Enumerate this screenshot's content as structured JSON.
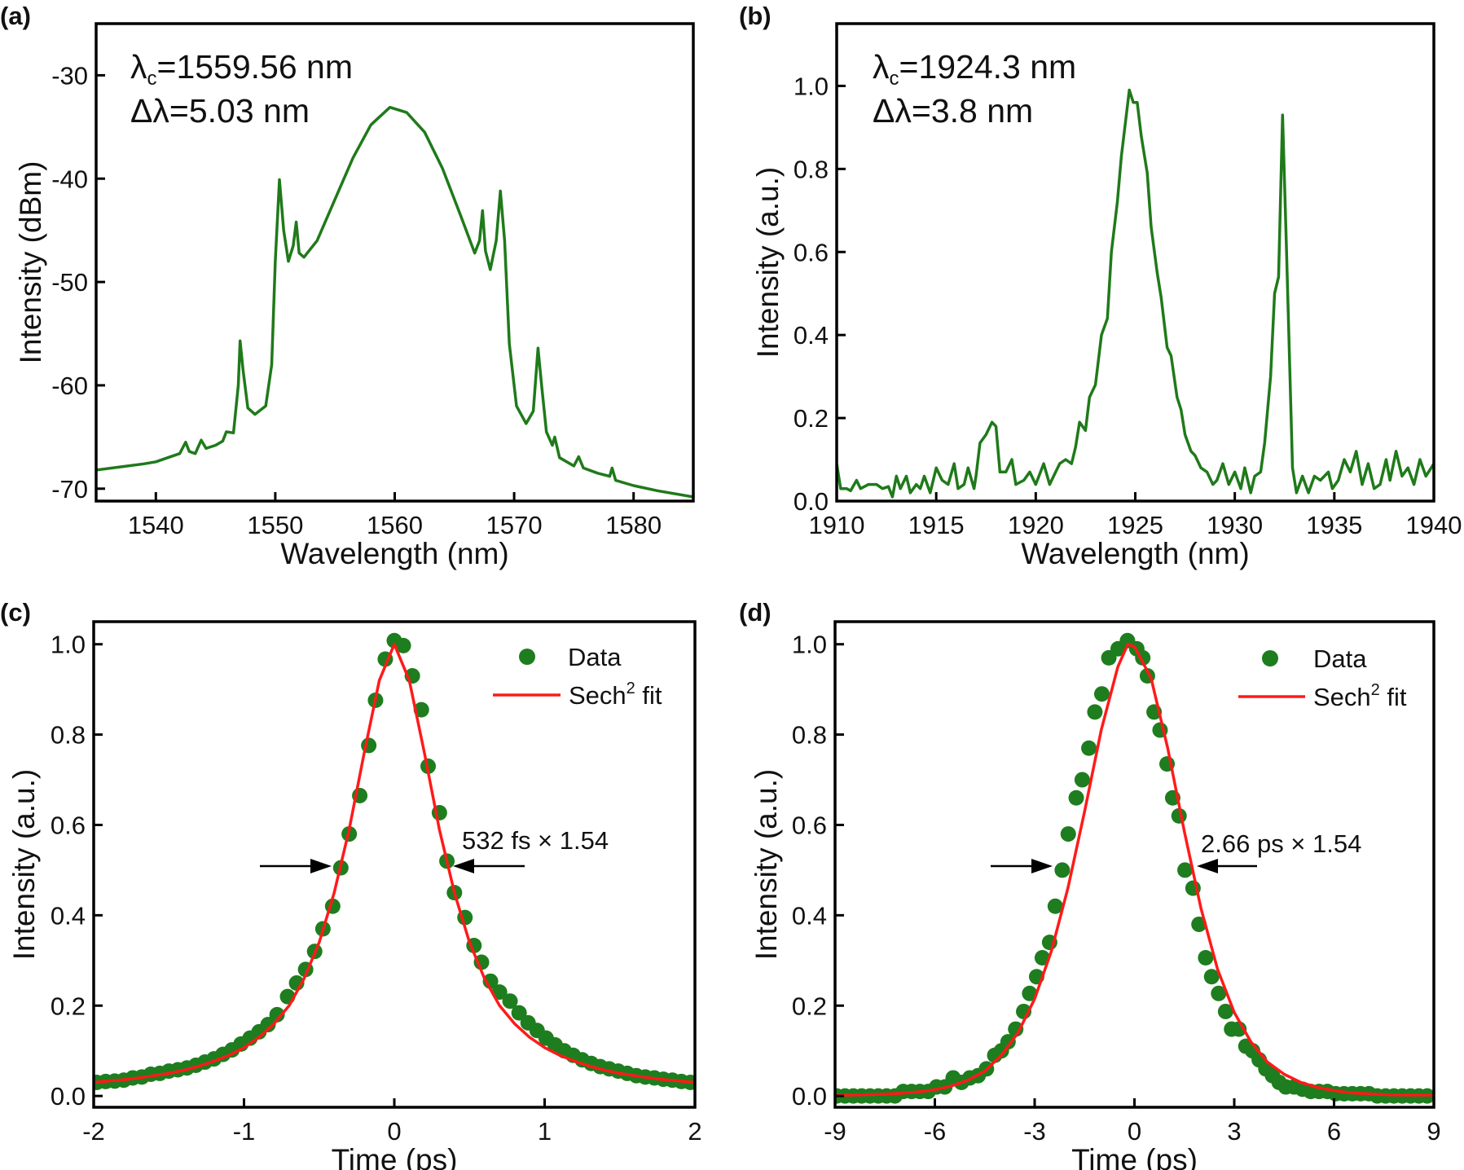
{
  "chart_data": [
    {
      "panel_label": "(a)",
      "type": "line",
      "xlabel": "Wavelength (nm)",
      "ylabel": "Intensity (dBm)",
      "xlim": [
        1535,
        1585
      ],
      "ylim": [
        -71.2,
        -25
      ],
      "xticks": [
        1540,
        1550,
        1560,
        1570,
        1580
      ],
      "xtick_labels": [
        "1540",
        "1550",
        "1560",
        "1570",
        "1580"
      ],
      "yticks": [
        -70,
        -60,
        -50,
        -40,
        -30
      ],
      "ytick_labels": [
        "-70",
        "-60",
        "-50",
        "-40",
        "-30"
      ],
      "annotation": {
        "lambda_symbol": "λ",
        "lambda_sub": "c",
        "lambda_value": "=1559.56 nm",
        "delta_label": "Δλ=5.03 nm"
      },
      "line_color": "#1f7a1a",
      "grid": false,
      "series": [
        {
          "x": [
            1535,
            1537,
            1539,
            1540,
            1541,
            1542,
            1542.5,
            1542.8,
            1543.3,
            1543.8,
            1544.2,
            1545,
            1545.6,
            1545.9,
            1546.5,
            1546.9,
            1547.05,
            1547.3,
            1547.7,
            1548.3,
            1549.2,
            1549.7,
            1550.0,
            1550.35,
            1550.7,
            1551.1,
            1551.5,
            1551.75,
            1552.0,
            1552.4,
            1553.5,
            1555,
            1556.5,
            1558,
            1559.6,
            1561,
            1562.5,
            1564,
            1565.5,
            1566.7,
            1567.1,
            1567.35,
            1567.6,
            1568.0,
            1568.5,
            1568.85,
            1569.2,
            1569.6,
            1570.2,
            1571,
            1571.6,
            1572.0,
            1572.3,
            1572.7,
            1573.2,
            1573.4,
            1573.8,
            1575,
            1575.4,
            1575.8,
            1577,
            1578,
            1578.2,
            1578.5,
            1580,
            1582,
            1585
          ],
          "y": [
            -68.2,
            -67.9,
            -67.6,
            -67.4,
            -67,
            -66.6,
            -65.5,
            -66.4,
            -66.6,
            -65.3,
            -66.1,
            -65.8,
            -65.4,
            -64.5,
            -64.6,
            -60,
            -55.7,
            -58.5,
            -62.2,
            -62.8,
            -62,
            -58,
            -48,
            -40.1,
            -45,
            -48,
            -46.5,
            -44.2,
            -47.2,
            -47.6,
            -46,
            -42,
            -38,
            -34.8,
            -33.1,
            -33.6,
            -35.5,
            -39,
            -43.5,
            -47.2,
            -46,
            -43.1,
            -47,
            -48.8,
            -46,
            -41.2,
            -46,
            -56,
            -62,
            -63.7,
            -62.5,
            -56.4,
            -60,
            -64.5,
            -65.8,
            -65,
            -67,
            -67.8,
            -66.9,
            -68,
            -68.5,
            -68.8,
            -68,
            -69.2,
            -69.7,
            -70.2,
            -70.8
          ]
        }
      ]
    },
    {
      "panel_label": "(b)",
      "type": "line",
      "xlabel": "Wavelength (nm)",
      "ylabel": "Intensity (a.u.)",
      "xlim": [
        1910,
        1940
      ],
      "ylim": [
        0,
        1.15
      ],
      "xticks": [
        1910,
        1915,
        1920,
        1925,
        1930,
        1935,
        1940
      ],
      "xtick_labels": [
        "1910",
        "1915",
        "1920",
        "1925",
        "1930",
        "1935",
        "1940"
      ],
      "yticks": [
        0,
        0.2,
        0.4,
        0.6,
        0.8,
        1.0
      ],
      "ytick_labels": [
        "0.0",
        "0.2",
        "0.4",
        "0.6",
        "0.8",
        "1.0"
      ],
      "annotation": {
        "lambda_symbol": "λ",
        "lambda_sub": "c",
        "lambda_value": "=1924.3 nm",
        "delta_label": "Δλ=3.8 nm"
      },
      "line_color": "#1f7a1a",
      "grid": false,
      "series": [
        {
          "x": [
            1910,
            1910.2,
            1910.5,
            1910.7,
            1911,
            1911.2,
            1911.6,
            1912,
            1912.3,
            1912.6,
            1912.8,
            1913,
            1913.2,
            1913.5,
            1913.7,
            1914,
            1914.2,
            1914.4,
            1914.7,
            1915,
            1915.3,
            1915.6,
            1915.9,
            1916.1,
            1916.4,
            1916.6,
            1916.9,
            1917.0,
            1917.2,
            1917.5,
            1917.8,
            1918.0,
            1918.2,
            1918.5,
            1918.8,
            1919.0,
            1919.4,
            1919.7,
            1920.0,
            1920.4,
            1920.7,
            1920.9,
            1921.2,
            1921.5,
            1921.8,
            1922.0,
            1922.2,
            1922.5,
            1922.7,
            1923.0,
            1923.3,
            1923.6,
            1923.8,
            1924.1,
            1924.3,
            1924.5,
            1924.7,
            1924.9,
            1925.1,
            1925.3,
            1925.6,
            1925.8,
            1926.1,
            1926.3,
            1926.6,
            1926.8,
            1927.1,
            1927.3,
            1927.5,
            1927.8,
            1928.0,
            1928.3,
            1928.6,
            1928.9,
            1929.1,
            1929.4,
            1929.7,
            1930.0,
            1930.3,
            1930.5,
            1930.8,
            1931.0,
            1931.3,
            1931.5,
            1931.8,
            1932.0,
            1932.2,
            1932.4,
            1932.6,
            1932.9,
            1933.1,
            1933.4,
            1933.7,
            1934.0,
            1934.3,
            1934.7,
            1934.9,
            1935.2,
            1935.5,
            1935.8,
            1936.1,
            1936.4,
            1936.7,
            1937.0,
            1937.3,
            1937.6,
            1937.8,
            1938.1,
            1938.4,
            1938.7,
            1939.0,
            1939.3,
            1939.6,
            1940
          ],
          "y": [
            0.09,
            0.03,
            0.03,
            0.025,
            0.05,
            0.03,
            0.04,
            0.04,
            0.03,
            0.035,
            0.01,
            0.06,
            0.03,
            0.06,
            0.02,
            0.04,
            0.03,
            0.06,
            0.02,
            0.08,
            0.05,
            0.04,
            0.09,
            0.03,
            0.04,
            0.08,
            0.03,
            0.06,
            0.14,
            0.16,
            0.19,
            0.18,
            0.07,
            0.07,
            0.1,
            0.04,
            0.05,
            0.07,
            0.04,
            0.09,
            0.04,
            0.06,
            0.09,
            0.1,
            0.09,
            0.13,
            0.19,
            0.17,
            0.25,
            0.28,
            0.4,
            0.44,
            0.6,
            0.72,
            0.83,
            0.91,
            0.99,
            0.96,
            0.96,
            0.88,
            0.79,
            0.66,
            0.55,
            0.49,
            0.37,
            0.35,
            0.25,
            0.22,
            0.16,
            0.12,
            0.11,
            0.08,
            0.07,
            0.04,
            0.05,
            0.09,
            0.04,
            0.07,
            0.03,
            0.08,
            0.02,
            0.06,
            0.07,
            0.14,
            0.3,
            0.5,
            0.54,
            0.93,
            0.6,
            0.08,
            0.02,
            0.06,
            0.02,
            0.06,
            0.05,
            0.07,
            0.03,
            0.05,
            0.1,
            0.07,
            0.12,
            0.04,
            0.09,
            0.03,
            0.04,
            0.1,
            0.05,
            0.12,
            0.06,
            0.08,
            0.04,
            0.1,
            0.06,
            0.09
          ]
        }
      ]
    },
    {
      "panel_label": "(c)",
      "type": "scatter",
      "xlabel": "Time (ps)",
      "ylabel": "Intensity (a.u.)",
      "xlim": [
        -2,
        2
      ],
      "ylim": [
        -0.025,
        1.05
      ],
      "xticks": [
        -2,
        -1,
        0,
        1,
        2
      ],
      "xtick_labels": [
        "-2",
        "-1",
        "0",
        "1",
        "2"
      ],
      "yticks": [
        0,
        0.2,
        0.4,
        0.6,
        0.8,
        1.0
      ],
      "ytick_labels": [
        "0.0",
        "0.2",
        "0.4",
        "0.6",
        "0.8",
        "1.0"
      ],
      "legend": {
        "data_label": "Data",
        "fit_prefix": "Sech",
        "fit_sup": "2",
        "fit_suffix": " fit",
        "placement": "top-right"
      },
      "fwhm_label": "532 fs × 1.54",
      "grid": false,
      "series": [
        {
          "name": "Data",
          "kind": "scatter",
          "color": "#1e7d1e",
          "x": [
            -1.98,
            -1.92,
            -1.86,
            -1.8,
            -1.74,
            -1.68,
            -1.62,
            -1.56,
            -1.5,
            -1.44,
            -1.38,
            -1.32,
            -1.26,
            -1.2,
            -1.14,
            -1.08,
            -1.02,
            -0.96,
            -0.9,
            -0.84,
            -0.78,
            -0.71,
            -0.65,
            -0.59,
            -0.53,
            -0.475,
            -0.41,
            -0.356,
            -0.3,
            -0.23,
            -0.17,
            -0.125,
            -0.06,
            0,
            0.06,
            0.12,
            0.18,
            0.225,
            0.3,
            0.35,
            0.4,
            0.47,
            0.53,
            0.58,
            0.64,
            0.7,
            0.77,
            0.83,
            0.89,
            0.95,
            1.01,
            1.07,
            1.13,
            1.19,
            1.25,
            1.31,
            1.37,
            1.43,
            1.49,
            1.55,
            1.61,
            1.67,
            1.73,
            1.79,
            1.85,
            1.91,
            1.97
          ],
          "y": [
            0.03,
            0.032,
            0.033,
            0.035,
            0.04,
            0.042,
            0.048,
            0.05,
            0.055,
            0.058,
            0.062,
            0.068,
            0.075,
            0.082,
            0.092,
            0.102,
            0.115,
            0.128,
            0.142,
            0.158,
            0.18,
            0.22,
            0.25,
            0.28,
            0.32,
            0.37,
            0.42,
            0.505,
            0.58,
            0.665,
            0.776,
            0.876,
            0.967,
            1.008,
            0.997,
            0.93,
            0.855,
            0.73,
            0.627,
            0.52,
            0.45,
            0.395,
            0.333,
            0.296,
            0.254,
            0.23,
            0.21,
            0.184,
            0.162,
            0.145,
            0.128,
            0.113,
            0.1,
            0.09,
            0.08,
            0.072,
            0.065,
            0.06,
            0.055,
            0.05,
            0.045,
            0.042,
            0.04,
            0.037,
            0.035,
            0.032,
            0.03
          ]
        },
        {
          "name": "Sech2 fit",
          "kind": "line",
          "color": "#ff1a1a",
          "x": [
            -2,
            -1.9,
            -1.8,
            -1.7,
            -1.6,
            -1.5,
            -1.4,
            -1.3,
            -1.2,
            -1.1,
            -1.0,
            -0.9,
            -0.8,
            -0.7,
            -0.6,
            -0.5,
            -0.4,
            -0.3,
            -0.2,
            -0.1,
            0,
            0.1,
            0.2,
            0.3,
            0.4,
            0.5,
            0.6,
            0.7,
            0.8,
            0.9,
            1.0,
            1.1,
            1.2,
            1.3,
            1.4,
            1.5,
            1.6,
            1.7,
            1.8,
            1.9,
            2
          ],
          "y": [
            0.03,
            0.033,
            0.036,
            0.04,
            0.045,
            0.05,
            0.057,
            0.066,
            0.077,
            0.09,
            0.107,
            0.13,
            0.16,
            0.2,
            0.26,
            0.34,
            0.45,
            0.59,
            0.76,
            0.92,
            1.0,
            0.92,
            0.76,
            0.59,
            0.45,
            0.34,
            0.26,
            0.2,
            0.16,
            0.13,
            0.107,
            0.09,
            0.077,
            0.066,
            0.057,
            0.05,
            0.045,
            0.04,
            0.036,
            0.033,
            0.03
          ]
        }
      ]
    },
    {
      "panel_label": "(d)",
      "type": "scatter",
      "xlabel": "Time (ps)",
      "ylabel": "Intensity (a.u.)",
      "xlim": [
        -9,
        9
      ],
      "ylim": [
        -0.025,
        1.05
      ],
      "xticks": [
        -9,
        -6,
        -3,
        0,
        3,
        6,
        9
      ],
      "xtick_labels": [
        "-9",
        "-6",
        "-3",
        "0",
        "3",
        "6",
        "9"
      ],
      "yticks": [
        0,
        0.2,
        0.4,
        0.6,
        0.8,
        1.0
      ],
      "ytick_labels": [
        "0.0",
        "0.2",
        "0.4",
        "0.6",
        "0.8",
        "1.0"
      ],
      "legend": {
        "data_label": "Data",
        "fit_prefix": "Sech",
        "fit_sup": "2",
        "fit_suffix": " fit",
        "placement": "top-right"
      },
      "fwhm_label": "2.66 ps × 1.54",
      "grid": false,
      "series": [
        {
          "name": "Data",
          "kind": "scatter",
          "color": "#1e7d1e",
          "x": [
            -8.95,
            -8.7,
            -8.45,
            -8.2,
            -7.95,
            -7.7,
            -7.45,
            -7.2,
            -6.95,
            -6.7,
            -6.45,
            -6.2,
            -5.95,
            -5.7,
            -5.45,
            -5.2,
            -4.95,
            -4.7,
            -4.45,
            -4.2,
            -4.0,
            -3.8,
            -3.57,
            -3.33,
            -3.15,
            -2.94,
            -2.77,
            -2.55,
            -2.38,
            -2.17,
            -1.99,
            -1.75,
            -1.57,
            -1.37,
            -1.19,
            -0.98,
            -0.77,
            -0.49,
            -0.21,
            0.07,
            0.25,
            0.39,
            0.59,
            0.77,
            0.98,
            1.15,
            1.34,
            1.52,
            1.76,
            1.94,
            2.14,
            2.32,
            2.53,
            2.74,
            2.92,
            3.14,
            3.35,
            3.55,
            3.75,
            3.95,
            4.15,
            4.35,
            4.55,
            4.8,
            5.05,
            5.3,
            5.55,
            5.8,
            6.05,
            6.3,
            6.55,
            6.8,
            7.05,
            7.3,
            7.55,
            7.8,
            8.05,
            8.3,
            8.55,
            8.8
          ],
          "y": [
            0,
            0,
            0,
            0,
            0,
            0,
            0,
            0,
            0.01,
            0.01,
            0.01,
            0.01,
            0.02,
            0.02,
            0.04,
            0.03,
            0.04,
            0.045,
            0.06,
            0.09,
            0.1,
            0.12,
            0.148,
            0.187,
            0.227,
            0.264,
            0.306,
            0.34,
            0.42,
            0.5,
            0.58,
            0.66,
            0.7,
            0.77,
            0.85,
            0.89,
            0.97,
            0.99,
            1.008,
            0.99,
            0.97,
            0.93,
            0.85,
            0.81,
            0.735,
            0.66,
            0.62,
            0.5,
            0.46,
            0.38,
            0.306,
            0.264,
            0.227,
            0.187,
            0.148,
            0.148,
            0.11,
            0.1,
            0.08,
            0.06,
            0.045,
            0.03,
            0.02,
            0.02,
            0.015,
            0.01,
            0.01,
            0.01,
            0.005,
            0.005,
            0.005,
            0.005,
            0.005,
            0,
            0,
            0,
            0,
            0,
            0,
            0
          ]
        },
        {
          "name": "Sech2 fit",
          "kind": "line",
          "color": "#ff1a1a",
          "x": [
            -9,
            -8.5,
            -8,
            -7.5,
            -7,
            -6.5,
            -6,
            -5.5,
            -5,
            -4.5,
            -4,
            -3.5,
            -3,
            -2.5,
            -2,
            -1.5,
            -1,
            -0.5,
            -0.2,
            0,
            0.5,
            1,
            1.5,
            2,
            2.5,
            3,
            3.5,
            4,
            4.5,
            5,
            5.5,
            6,
            6.5,
            7,
            7.5,
            8,
            8.5,
            9
          ],
          "y": [
            0.002,
            0.002,
            0.003,
            0.004,
            0.006,
            0.009,
            0.014,
            0.022,
            0.035,
            0.055,
            0.09,
            0.14,
            0.215,
            0.32,
            0.46,
            0.63,
            0.81,
            0.95,
            1.0,
            0.995,
            0.925,
            0.77,
            0.585,
            0.415,
            0.28,
            0.185,
            0.12,
            0.075,
            0.048,
            0.03,
            0.019,
            0.012,
            0.007,
            0.005,
            0.003,
            0.002,
            0.002,
            0.002
          ]
        }
      ]
    }
  ]
}
